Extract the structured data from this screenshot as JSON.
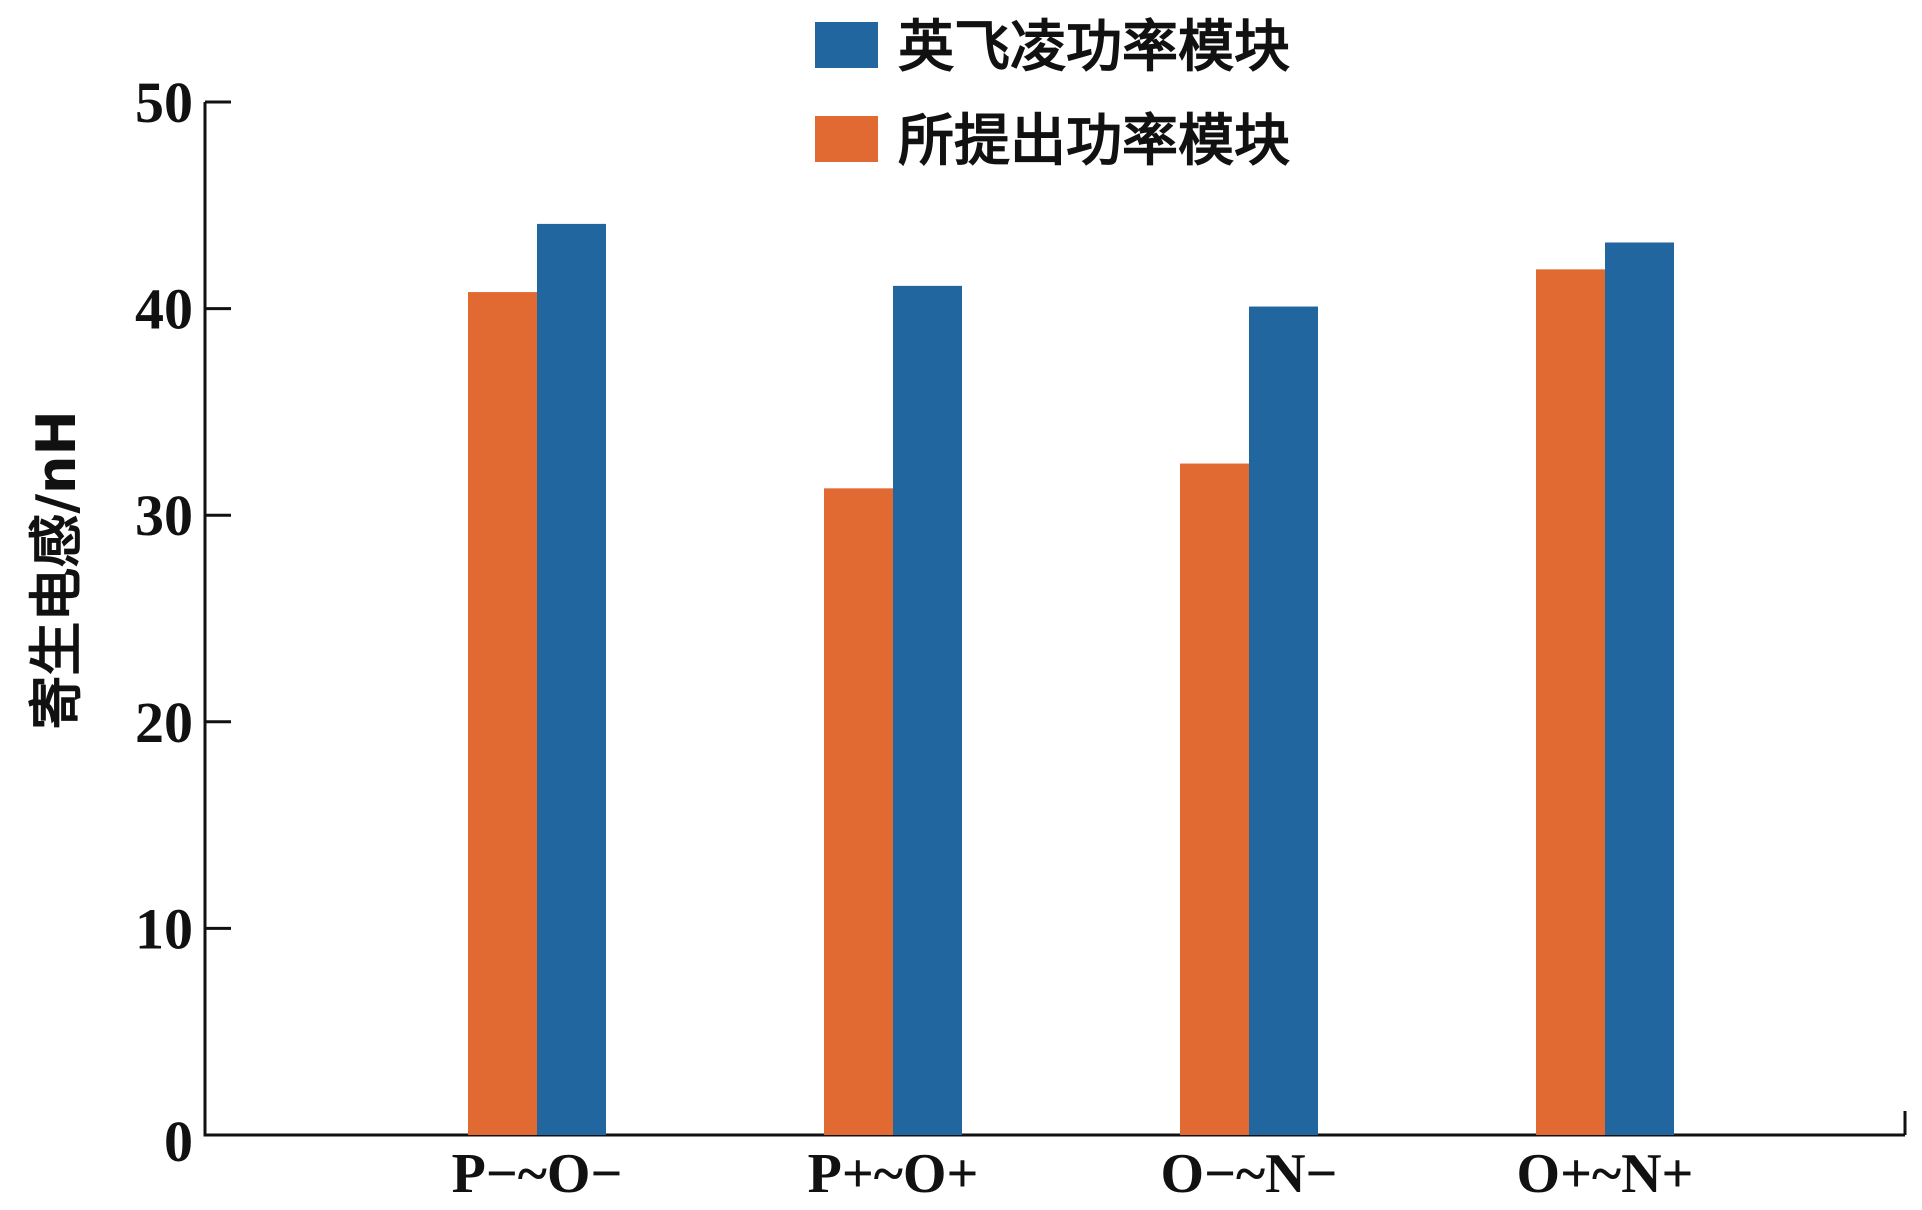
{
  "chart_data": {
    "type": "bar",
    "title": "",
    "xlabel": "",
    "ylabel": "寄生电感/nH",
    "ylim": [
      0,
      50
    ],
    "yticks": [
      0,
      10,
      20,
      30,
      40,
      50
    ],
    "grid": false,
    "legend_position": "top-center",
    "categories": [
      "P−~O−",
      "P+~O+",
      "O−~N−",
      "O+~N+"
    ],
    "series": [
      {
        "name": "所提出功率模块",
        "color": "#e06a31",
        "values": [
          40.8,
          31.3,
          32.5,
          41.9
        ]
      },
      {
        "name": "英飞凌功率模块",
        "color": "#2266a0",
        "values": [
          44.1,
          41.1,
          40.1,
          43.2
        ]
      }
    ],
    "legend_order": [
      1,
      0
    ]
  }
}
